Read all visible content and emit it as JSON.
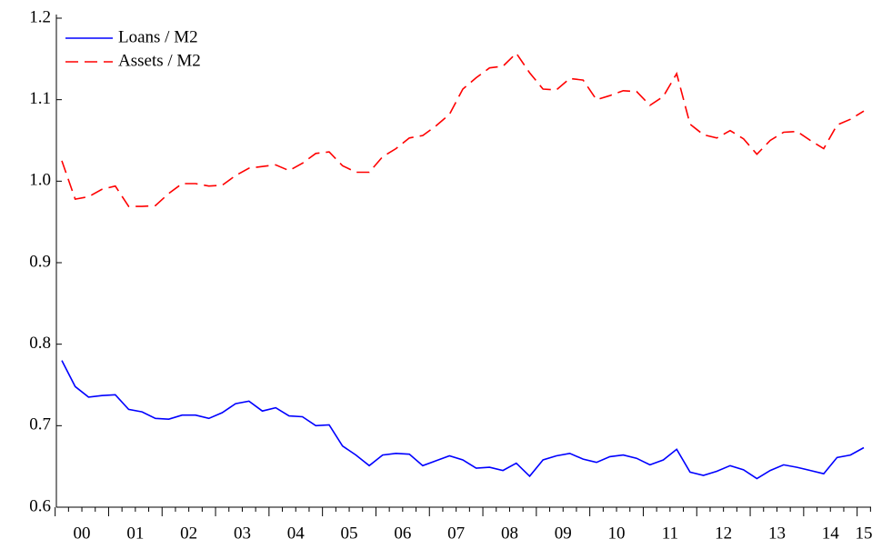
{
  "chart_data": {
    "type": "line",
    "categories": [
      "00",
      null,
      null,
      null,
      "01",
      null,
      null,
      null,
      "02",
      null,
      null,
      null,
      "03",
      null,
      null,
      null,
      "04",
      null,
      null,
      null,
      "05",
      null,
      null,
      null,
      "06",
      null,
      null,
      null,
      "07",
      null,
      null,
      null,
      "08",
      null,
      null,
      null,
      "09",
      null,
      null,
      null,
      "10",
      null,
      null,
      null,
      "11",
      null,
      null,
      null,
      "12",
      null,
      null,
      null,
      "13",
      null,
      null,
      null,
      "14",
      null,
      null,
      null,
      "15"
    ],
    "series": [
      {
        "name": "Loans / M2",
        "color": "#0000ff",
        "line_style": "solid",
        "values": [
          0.78,
          0.748,
          0.735,
          0.737,
          0.738,
          0.72,
          0.717,
          0.709,
          0.708,
          0.713,
          0.713,
          0.709,
          0.716,
          0.727,
          0.73,
          0.718,
          0.722,
          0.712,
          0.711,
          0.7,
          0.701,
          0.675,
          0.664,
          0.651,
          0.664,
          0.666,
          0.665,
          0.651,
          0.657,
          0.663,
          0.658,
          0.648,
          0.649,
          0.645,
          0.654,
          0.638,
          0.658,
          0.663,
          0.666,
          0.659,
          0.655,
          0.662,
          0.664,
          0.66,
          0.652,
          0.658,
          0.671,
          0.643,
          0.639,
          0.644,
          0.651,
          0.646,
          0.635,
          0.645,
          0.652,
          0.649,
          0.645,
          0.641,
          0.661,
          0.664,
          0.673
        ]
      },
      {
        "name": "Assets / M2",
        "color": "#ff0000",
        "line_style": "dashed",
        "values": [
          1.025,
          0.978,
          0.981,
          0.99,
          0.994,
          0.969,
          0.969,
          0.97,
          0.985,
          0.997,
          0.997,
          0.994,
          0.995,
          1.007,
          1.016,
          1.018,
          1.02,
          1.013,
          1.022,
          1.034,
          1.036,
          1.019,
          1.011,
          1.011,
          1.03,
          1.04,
          1.053,
          1.056,
          1.068,
          1.082,
          1.113,
          1.127,
          1.139,
          1.141,
          1.157,
          1.133,
          1.113,
          1.112,
          1.126,
          1.124,
          1.1,
          1.105,
          1.111,
          1.11,
          1.093,
          1.104,
          1.132,
          1.07,
          1.057,
          1.053,
          1.062,
          1.052,
          1.033,
          1.05,
          1.06,
          1.061,
          1.05,
          1.04,
          1.069,
          1.076,
          1.086
        ]
      }
    ],
    "ylim": [
      0.6,
      1.2
    ],
    "yticks": [
      0.6,
      0.7,
      0.8,
      0.9,
      {
        "value": 1,
        "label": "1.0"
      },
      1.1,
      1.2
    ],
    "grid": false,
    "legend": "upper left"
  }
}
